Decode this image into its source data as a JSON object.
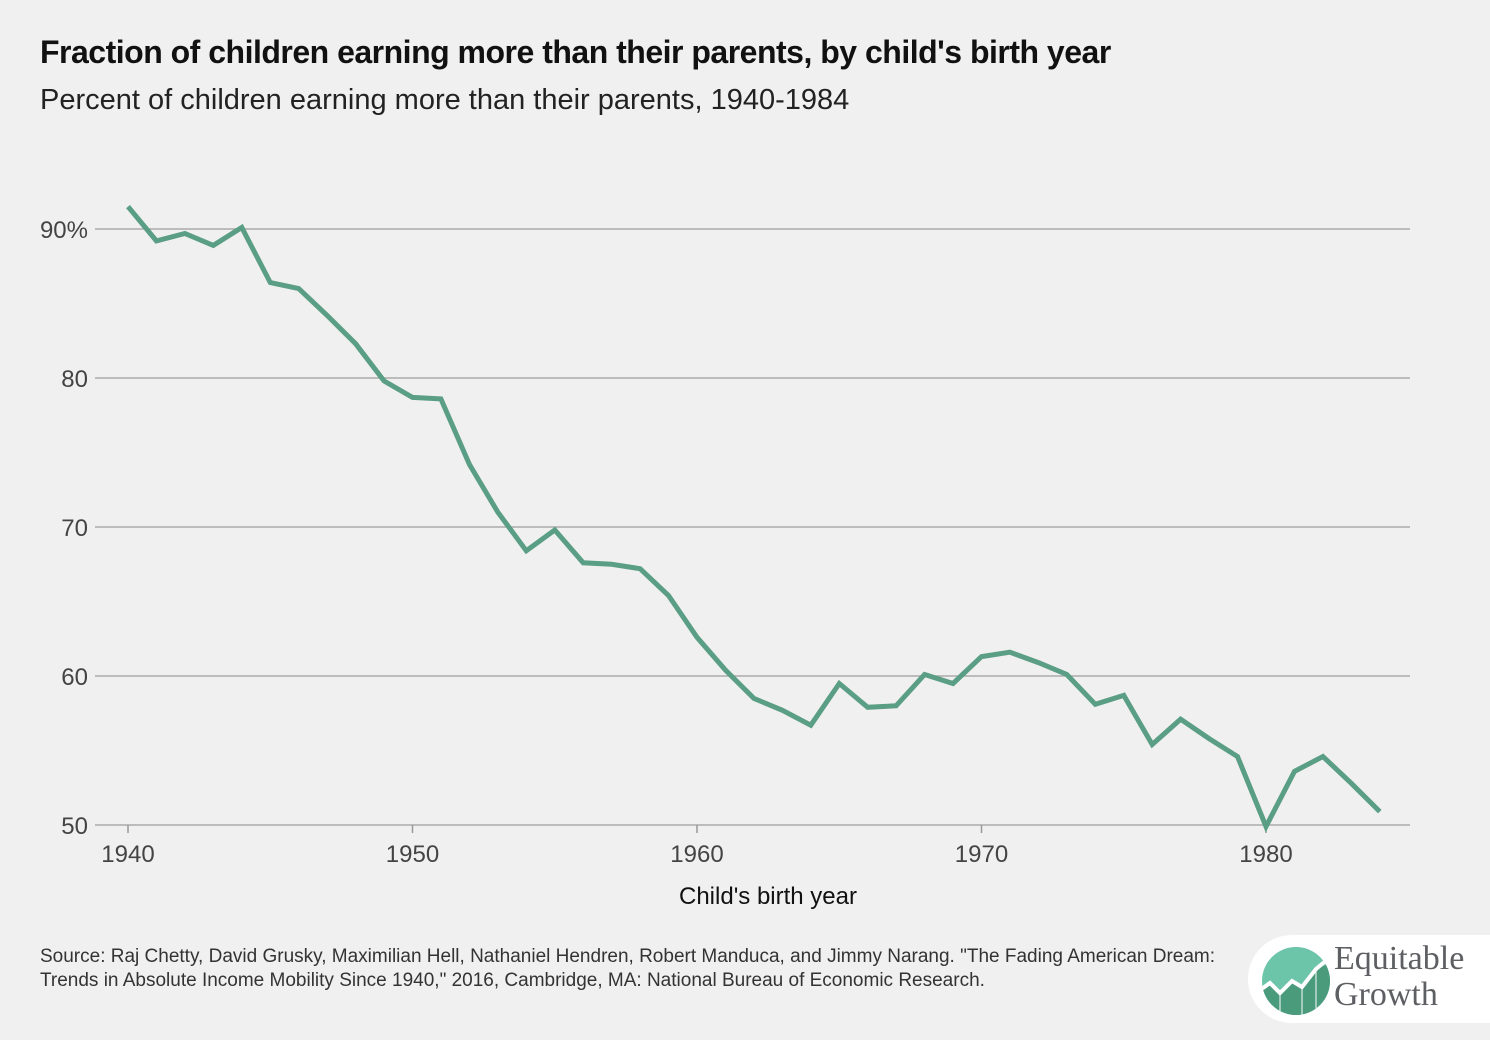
{
  "title": "Fraction of children earning more than their parents, by child's birth year",
  "subtitle": "Percent of children earning more than their parents, 1940-1984",
  "source": "Source: Raj Chetty, David Grusky, Maximilian Hell, Nathaniel Hendren, Robert Manduca, and Jimmy Narang. \"The Fading American Dream: Trends in Absolute Income Mobility Since 1940,\" 2016, Cambridge, MA: National Bureau of Economic Research.",
  "logo": {
    "line1": "Equitable",
    "line2": "Growth"
  },
  "colors": {
    "line": "#5a9e85",
    "grid": "#aaaaaa",
    "background": "#f0f0f0"
  },
  "chart_data": {
    "type": "line",
    "title": "Fraction of children earning more than their parents, by child's birth year",
    "subtitle": "Percent of children earning more than their parents, 1940-1984",
    "xlabel": "Child's birth year",
    "ylabel": "",
    "xlim": [
      1940,
      1985
    ],
    "ylim": [
      50,
      93
    ],
    "grid": "horizontal",
    "x_ticks": [
      1940,
      1950,
      1960,
      1970,
      1980
    ],
    "x_tick_labels": [
      "1940",
      "1950",
      "1960",
      "1970",
      "1980"
    ],
    "y_ticks": [
      50,
      60,
      70,
      80,
      90
    ],
    "y_tick_labels": [
      "50",
      "60",
      "70",
      "80",
      "90%"
    ],
    "x": [
      1940,
      1941,
      1942,
      1943,
      1944,
      1945,
      1946,
      1947,
      1948,
      1949,
      1950,
      1951,
      1952,
      1953,
      1954,
      1955,
      1956,
      1957,
      1958,
      1959,
      1960,
      1961,
      1962,
      1963,
      1964,
      1965,
      1966,
      1967,
      1968,
      1969,
      1970,
      1971,
      1972,
      1973,
      1974,
      1975,
      1976,
      1977,
      1978,
      1979,
      1980,
      1981,
      1982,
      1983,
      1984
    ],
    "values": [
      91.5,
      89.2,
      89.7,
      88.9,
      90.1,
      86.4,
      86.0,
      84.2,
      82.3,
      79.8,
      78.7,
      78.6,
      74.2,
      71.0,
      68.4,
      69.8,
      67.6,
      67.5,
      67.2,
      65.4,
      62.6,
      60.4,
      58.5,
      57.7,
      56.7,
      59.5,
      57.9,
      58.0,
      60.1,
      59.5,
      61.3,
      61.6,
      60.9,
      60.1,
      58.1,
      58.7,
      55.4,
      57.1,
      55.8,
      54.6,
      49.9,
      53.6,
      54.6,
      52.8,
      50.9
    ]
  }
}
